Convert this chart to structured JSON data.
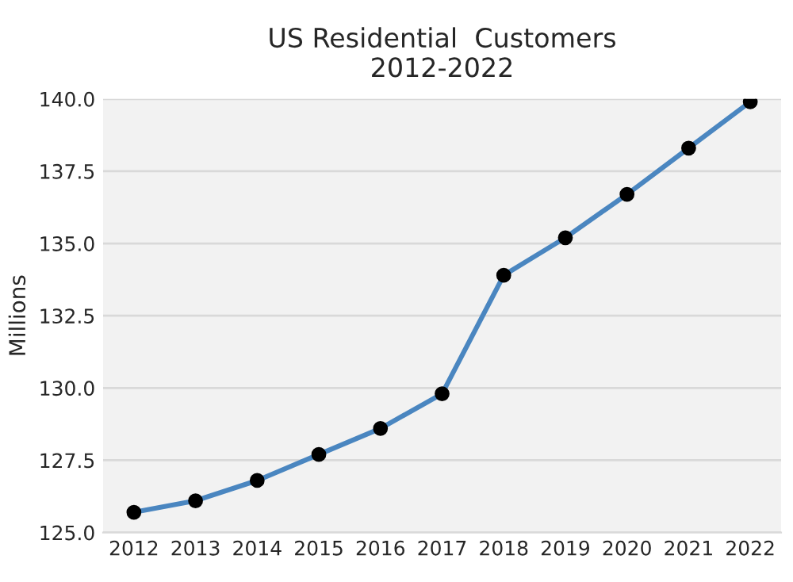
{
  "chart_data": {
    "type": "line",
    "title": "US Residential  Customers\n2012-2022",
    "ylabel": "Millions",
    "categories": [
      "2012",
      "2013",
      "2014",
      "2015",
      "2016",
      "2017",
      "2018",
      "2019",
      "2020",
      "2021",
      "2022"
    ],
    "series": [
      {
        "color": "#4a86c0",
        "values": [
          125.7,
          126.1,
          126.8,
          127.7,
          128.6,
          129.8,
          133.9,
          135.2,
          136.7,
          138.3,
          139.9
        ]
      }
    ],
    "ylim": [
      125,
      140
    ],
    "yticks": [
      {
        "value": 125,
        "label": "125.0"
      },
      {
        "value": 127.5,
        "label": "127.5"
      },
      {
        "value": 130,
        "label": "130.0"
      },
      {
        "value": 132.5,
        "label": "132.5"
      },
      {
        "value": 135,
        "label": "135.0"
      },
      {
        "value": 137.5,
        "label": "137.5"
      },
      {
        "value": 140,
        "label": "140.0"
      }
    ],
    "grid": "y",
    "marker": "circle",
    "line_style": "solid",
    "legend": false
  }
}
